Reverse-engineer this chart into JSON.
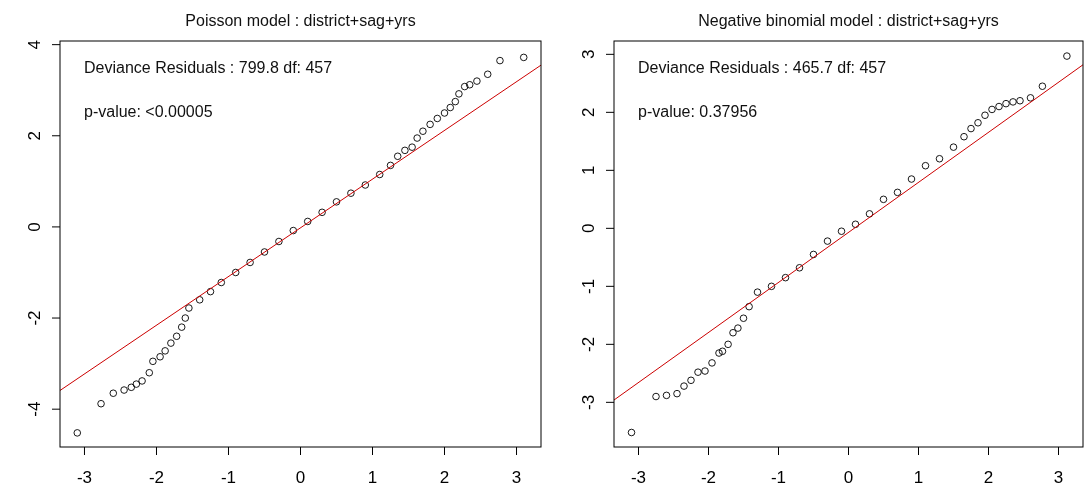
{
  "chart_data": [
    {
      "type": "scatter",
      "title": "Poisson model : district+sag+yrs",
      "annotations": [
        "Deviance Residuals : 799.8  df: 457",
        "p-value: <0.00005"
      ],
      "xlim": [
        -3.34,
        3.34
      ],
      "ylim": [
        -4.83,
        4.08
      ],
      "xticks": [
        -3,
        -2,
        -1,
        0,
        1,
        2,
        3
      ],
      "yticks": [
        -4,
        -2,
        0,
        2,
        4
      ],
      "series": [
        {
          "marker": "circle",
          "color": "#000000",
          "x": [
            -3.1,
            -2.77,
            -2.6,
            -2.45,
            -2.35,
            -2.28,
            -2.2,
            -2.1,
            -2.05,
            -1.95,
            -1.88,
            -1.8,
            -1.72,
            -1.65,
            -1.6,
            -1.55,
            -1.4,
            -1.25,
            -1.1,
            -0.9,
            -0.7,
            -0.5,
            -0.3,
            -0.1,
            0.1,
            0.3,
            0.5,
            0.7,
            0.9,
            1.1,
            1.25,
            1.35,
            1.45,
            1.55,
            1.62,
            1.7,
            1.8,
            1.9,
            2.0,
            2.08,
            2.15,
            2.2,
            2.28,
            2.35,
            2.45,
            2.6,
            2.77,
            3.1
          ],
          "values": [
            -4.52,
            -3.88,
            -3.65,
            -3.58,
            -3.52,
            -3.45,
            -3.38,
            -3.2,
            -2.95,
            -2.85,
            -2.72,
            -2.55,
            -2.4,
            -2.2,
            -2.0,
            -1.78,
            -1.6,
            -1.42,
            -1.22,
            -1.0,
            -0.78,
            -0.55,
            -0.32,
            -0.08,
            0.12,
            0.32,
            0.55,
            0.74,
            0.92,
            1.15,
            1.35,
            1.55,
            1.68,
            1.75,
            1.95,
            2.1,
            2.25,
            2.38,
            2.5,
            2.62,
            2.75,
            2.92,
            3.08,
            3.12,
            3.2,
            3.35,
            3.65,
            3.72
          ]
        },
        {
          "type": "line",
          "color": "#cc0000",
          "x": [
            -3.34,
            3.34
          ],
          "values": [
            -3.59,
            3.55
          ]
        }
      ]
    },
    {
      "type": "scatter",
      "title": "Negative binomial model : district+sag+yrs",
      "annotations": [
        "Deviance Residuals : 465.7  df: 457",
        "p-value: 0.37956"
      ],
      "xlim": [
        -3.35,
        3.35
      ],
      "ylim": [
        -3.77,
        3.23
      ],
      "xticks": [
        -3,
        -2,
        -1,
        0,
        1,
        2,
        3
      ],
      "yticks": [
        -3,
        -2,
        -1,
        0,
        1,
        2,
        3
      ],
      "series": [
        {
          "marker": "circle",
          "color": "#000000",
          "x": [
            -3.1,
            -2.75,
            -2.6,
            -2.45,
            -2.35,
            -2.25,
            -2.15,
            -2.05,
            -1.95,
            -1.85,
            -1.8,
            -1.72,
            -1.65,
            -1.58,
            -1.5,
            -1.42,
            -1.3,
            -1.1,
            -0.9,
            -0.7,
            -0.5,
            -0.3,
            -0.1,
            0.1,
            0.3,
            0.5,
            0.7,
            0.9,
            1.1,
            1.3,
            1.5,
            1.65,
            1.75,
            1.85,
            1.95,
            2.05,
            2.15,
            2.25,
            2.35,
            2.45,
            2.6,
            2.77,
            3.12
          ],
          "values": [
            -3.52,
            -2.9,
            -2.88,
            -2.85,
            -2.72,
            -2.62,
            -2.48,
            -2.46,
            -2.32,
            -2.15,
            -2.12,
            -2.0,
            -1.8,
            -1.72,
            -1.55,
            -1.35,
            -1.1,
            -1.0,
            -0.85,
            -0.68,
            -0.45,
            -0.22,
            -0.05,
            0.07,
            0.25,
            0.5,
            0.62,
            0.85,
            1.08,
            1.2,
            1.4,
            1.58,
            1.72,
            1.82,
            1.95,
            2.05,
            2.1,
            2.15,
            2.18,
            2.2,
            2.25,
            2.45,
            2.97
          ]
        },
        {
          "type": "line",
          "color": "#cc0000",
          "x": [
            -3.35,
            3.35
          ],
          "values": [
            -2.96,
            2.82
          ]
        }
      ]
    }
  ]
}
